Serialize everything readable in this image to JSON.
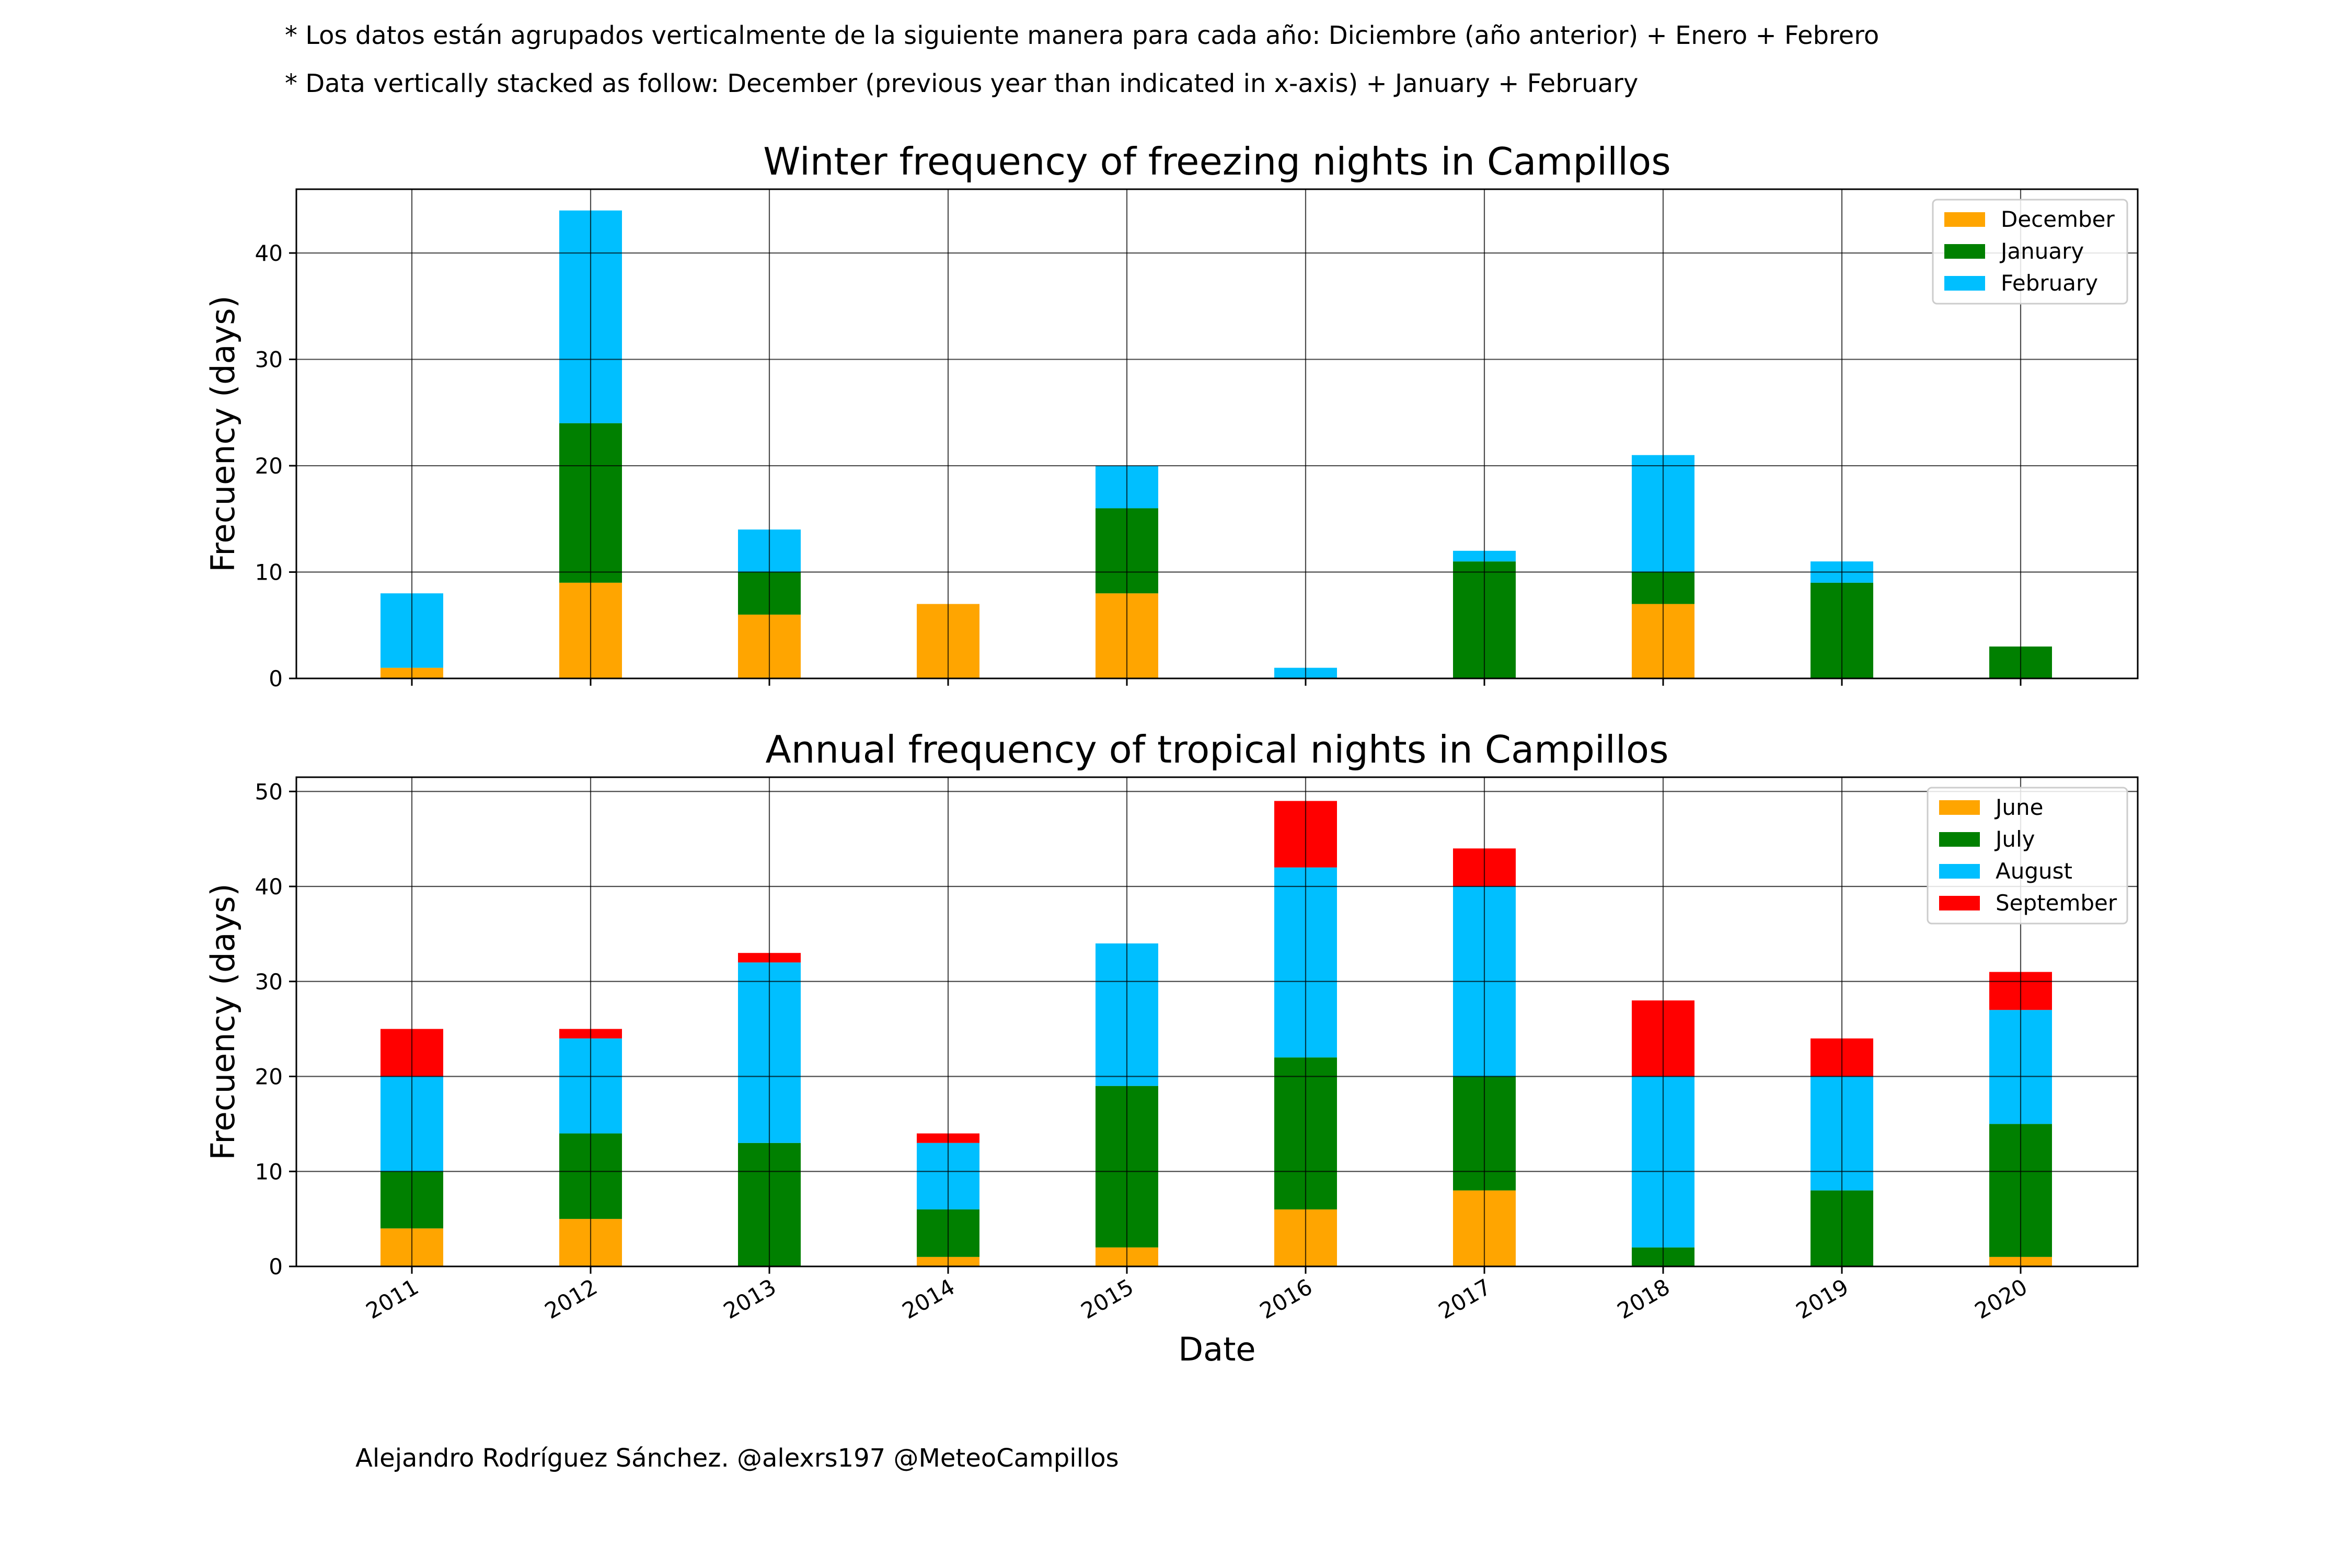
{
  "notes": {
    "line1": "* Los datos están agrupados verticalmente de la siguiente manera para cada año: Diciembre (año anterior) + Enero  + Febrero",
    "line2": "* Data vertically stacked as follow: December (previous year than indicated in x-axis) + January  + February"
  },
  "credit": "Alejandro Rodríguez Sánchez. @alexrs197 @MeteoCampillos",
  "chart_data": [
    {
      "type": "bar",
      "stacked": true,
      "title": "Winter frequency of freezing nights in Campillos",
      "ylabel": "Frecuency (days)",
      "xlabel": "",
      "categories": [
        "2011",
        "2012",
        "2013",
        "2014",
        "2015",
        "2016",
        "2017",
        "2018",
        "2019",
        "2020"
      ],
      "ylim": [
        0,
        46
      ],
      "yticks": [
        0,
        10,
        20,
        30,
        40
      ],
      "grid": true,
      "legend": "top-right",
      "series": [
        {
          "name": "December",
          "color": "#FFA500",
          "values": [
            1,
            9,
            6,
            7,
            8,
            0,
            0,
            7,
            0,
            0
          ]
        },
        {
          "name": "January",
          "color": "#008000",
          "values": [
            0,
            15,
            4,
            0,
            8,
            0,
            11,
            3,
            9,
            3
          ]
        },
        {
          "name": "February",
          "color": "#00BFFF",
          "values": [
            7,
            20,
            4,
            0,
            4,
            1,
            1,
            11,
            2,
            0
          ]
        }
      ]
    },
    {
      "type": "bar",
      "stacked": true,
      "title": "Annual frequency of tropical nights in Campillos",
      "ylabel": "Frecuency (days)",
      "xlabel": "Date",
      "categories": [
        "2011",
        "2012",
        "2013",
        "2014",
        "2015",
        "2016",
        "2017",
        "2018",
        "2019",
        "2020"
      ],
      "ylim": [
        0,
        51.5
      ],
      "yticks": [
        0,
        10,
        20,
        30,
        40,
        50
      ],
      "grid": true,
      "legend": "top-right",
      "series": [
        {
          "name": "June",
          "color": "#FFA500",
          "values": [
            4,
            5,
            0,
            1,
            2,
            6,
            8,
            0,
            0,
            1
          ]
        },
        {
          "name": "July",
          "color": "#008000",
          "values": [
            6,
            9,
            13,
            5,
            17,
            16,
            12,
            2,
            8,
            14
          ]
        },
        {
          "name": "August",
          "color": "#00BFFF",
          "values": [
            10,
            10,
            19,
            7,
            15,
            20,
            20,
            18,
            12,
            12
          ]
        },
        {
          "name": "September",
          "color": "#FF0000",
          "values": [
            5,
            1,
            1,
            1,
            0,
            7,
            4,
            8,
            4,
            4
          ]
        }
      ]
    }
  ]
}
